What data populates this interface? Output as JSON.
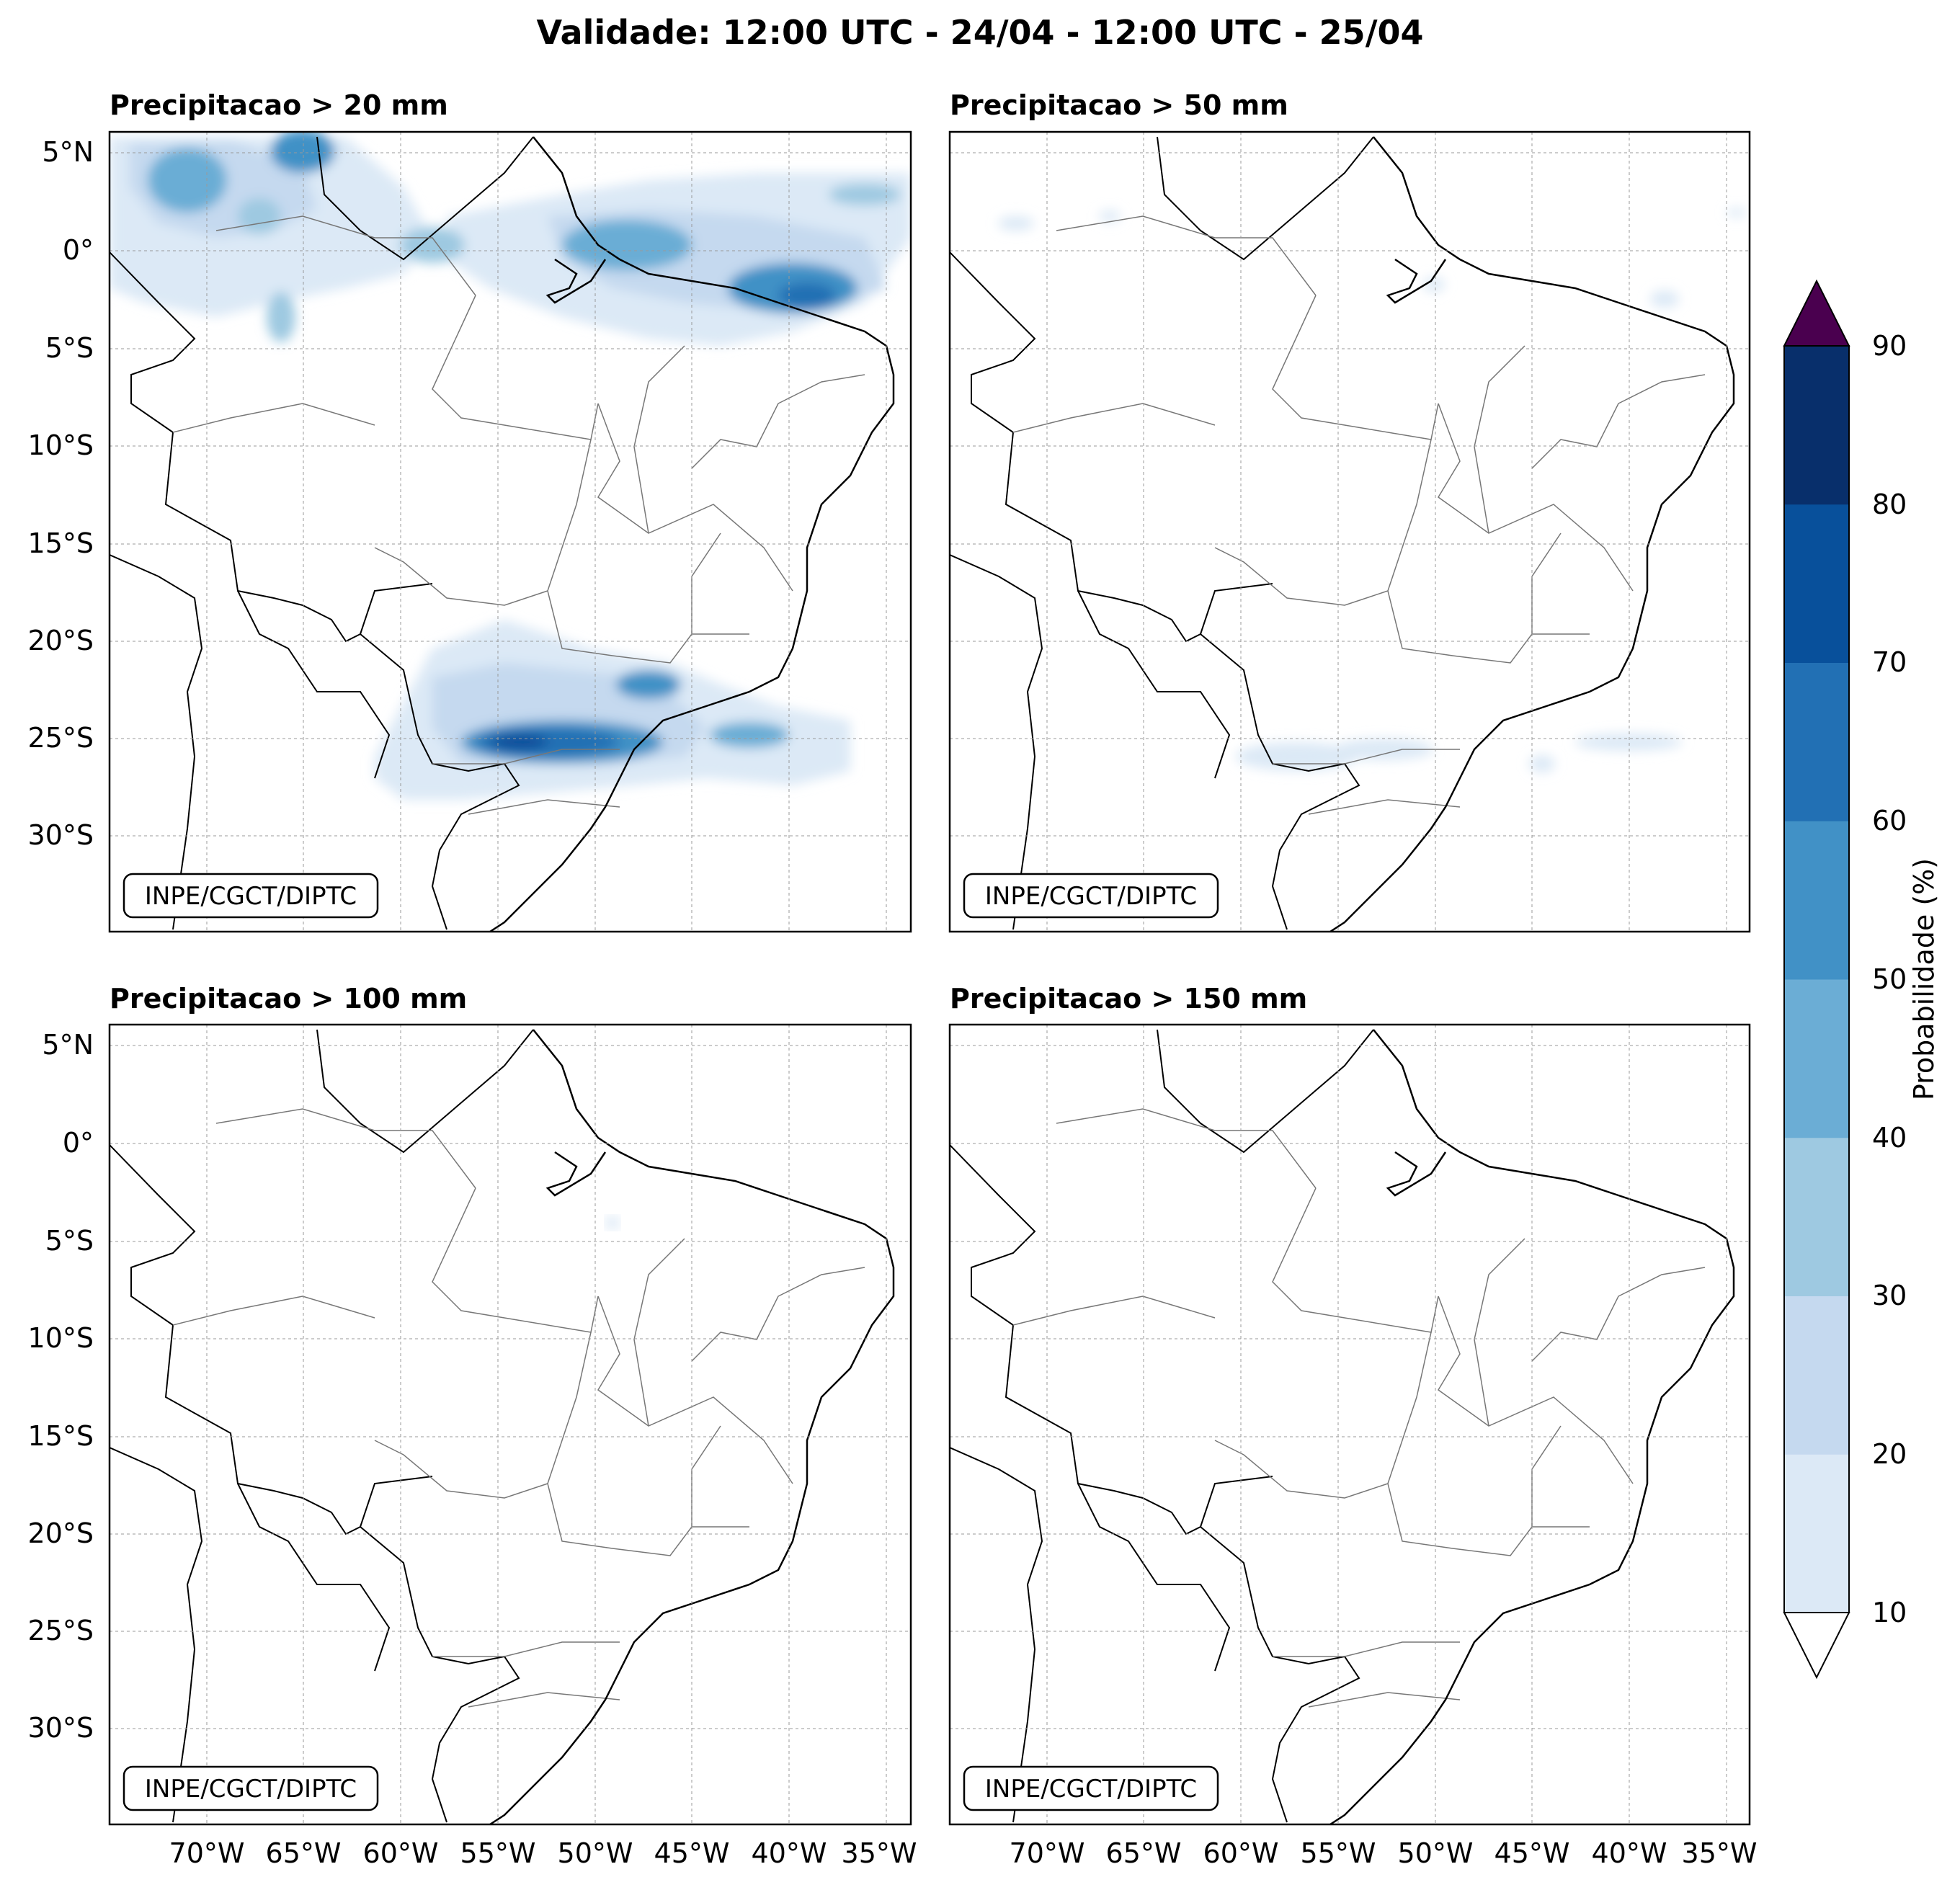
{
  "title": "Validade: 12:00 UTC - 24/04 - 12:00 UTC - 25/04",
  "credit": "INPE/CGCT/DIPTC",
  "panels": [
    {
      "title": "Precipitacao > 20 mm"
    },
    {
      "title": "Precipitacao > 50 mm"
    },
    {
      "title": "Precipitacao > 100 mm"
    },
    {
      "title": "Precipitacao > 150 mm"
    }
  ],
  "lat_ticks": [
    "5°N",
    "0°",
    "5°S",
    "10°S",
    "15°S",
    "20°S",
    "25°S",
    "30°S"
  ],
  "lon_ticks": [
    "70°W",
    "65°W",
    "60°W",
    "55°W",
    "50°W",
    "45°W",
    "40°W",
    "35°W"
  ],
  "colorbar": {
    "label": "Probabilidade (%)",
    "ticks": [
      "10",
      "20",
      "30",
      "40",
      "50",
      "60",
      "70",
      "80",
      "90"
    ],
    "colors": [
      "#dce9f6",
      "#c5d9ef",
      "#9ec9e1",
      "#6badd5",
      "#4191c6",
      "#2270b4",
      "#08509b",
      "#082f6b"
    ],
    "over_color": "#4a004f",
    "under_color": "#ffffff"
  }
}
